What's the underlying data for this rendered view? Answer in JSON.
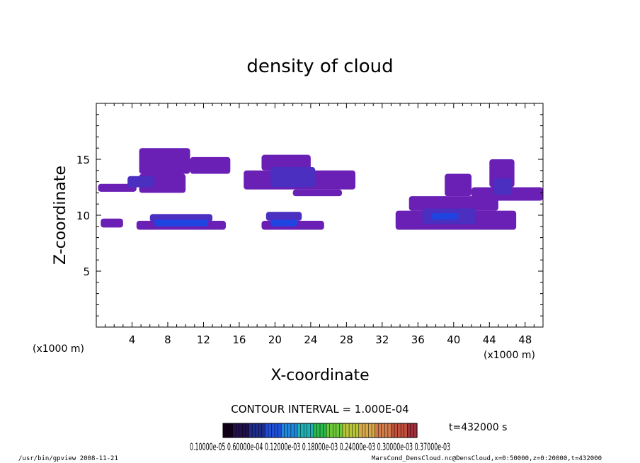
{
  "chart_data": {
    "type": "heatmap",
    "title": "density of cloud",
    "xlabel": "X-coordinate",
    "ylabel": "Z-coordinate",
    "x_unit_left": "(x1000 m)",
    "x_unit_right": "(x1000 m)",
    "xlim": [
      0,
      50
    ],
    "ylim": [
      0,
      20
    ],
    "xticks": [
      "4",
      "8",
      "12",
      "16",
      "20",
      "24",
      "28",
      "32",
      "36",
      "40",
      "44",
      "48"
    ],
    "yticks": [
      "5",
      "10",
      "15"
    ],
    "contour_interval": "CONTOUR INTERVAL = 1.000E-04",
    "time_label": "t=432000 s",
    "colorbar_labels": "0.10000e-05 0.60000e-04 0.12000e-03 0.18000e-03 0.24000e-03 0.30000e-03 0.37000e-03",
    "colorbar_colors": [
      "#120018",
      "#22104c",
      "#1e2c8c",
      "#1d4fd6",
      "#1f86dc",
      "#1fb0b4",
      "#2ab84a",
      "#6ec83a",
      "#b7c33a",
      "#d8a94a",
      "#d27b4a",
      "#c0503e",
      "#a1303a"
    ],
    "color_levels": [
      {
        "level": "low",
        "color": "#6a1fb5"
      },
      {
        "level": "medium",
        "color": "#4a2fc0"
      },
      {
        "level": "high",
        "color": "#1f44e0"
      }
    ],
    "regions": [
      {
        "level": "low",
        "x": [
          4.8,
          10.5
        ],
        "z": [
          13.7,
          16.0
        ]
      },
      {
        "level": "low",
        "x": [
          10.5,
          15.0
        ],
        "z": [
          13.7,
          15.2
        ]
      },
      {
        "level": "low",
        "x": [
          4.8,
          10.0
        ],
        "z": [
          12.0,
          13.7
        ]
      },
      {
        "level": "low",
        "x": [
          0.2,
          4.5
        ],
        "z": [
          12.1,
          12.8
        ]
      },
      {
        "level": "medium",
        "x": [
          3.5,
          6.5
        ],
        "z": [
          12.5,
          13.5
        ]
      },
      {
        "level": "low",
        "x": [
          0.5,
          3.0
        ],
        "z": [
          8.9,
          9.7
        ]
      },
      {
        "level": "low",
        "x": [
          4.5,
          14.5
        ],
        "z": [
          8.7,
          9.5
        ]
      },
      {
        "level": "medium",
        "x": [
          6.0,
          13.0
        ],
        "z": [
          9.4,
          10.1
        ]
      },
      {
        "level": "high",
        "x": [
          6.5,
          12.5
        ],
        "z": [
          9.0,
          9.6
        ]
      },
      {
        "level": "low",
        "x": [
          18.5,
          24.0
        ],
        "z": [
          14.0,
          15.4
        ]
      },
      {
        "level": "low",
        "x": [
          16.5,
          29.0
        ],
        "z": [
          12.3,
          14.0
        ]
      },
      {
        "level": "medium",
        "x": [
          19.5,
          24.5
        ],
        "z": [
          12.5,
          14.3
        ]
      },
      {
        "level": "low",
        "x": [
          22.0,
          27.5
        ],
        "z": [
          11.7,
          12.3
        ]
      },
      {
        "level": "low",
        "x": [
          18.5,
          25.5
        ],
        "z": [
          8.7,
          9.5
        ]
      },
      {
        "level": "medium",
        "x": [
          19.0,
          23.0
        ],
        "z": [
          9.5,
          10.3
        ]
      },
      {
        "level": "high",
        "x": [
          19.5,
          22.5
        ],
        "z": [
          9.0,
          9.6
        ]
      },
      {
        "level": "low",
        "x": [
          35.0,
          45.0
        ],
        "z": [
          10.4,
          11.7
        ]
      },
      {
        "level": "low",
        "x": [
          33.5,
          47.0
        ],
        "z": [
          8.7,
          10.4
        ]
      },
      {
        "level": "medium",
        "x": [
          36.5,
          42.5
        ],
        "z": [
          9.2,
          10.6
        ]
      },
      {
        "level": "high",
        "x": [
          37.5,
          40.5
        ],
        "z": [
          9.6,
          10.2
        ]
      },
      {
        "level": "low",
        "x": [
          39.0,
          42.0
        ],
        "z": [
          11.7,
          13.7
        ]
      },
      {
        "level": "low",
        "x": [
          42.0,
          50.0
        ],
        "z": [
          11.3,
          12.5
        ]
      },
      {
        "level": "low",
        "x": [
          44.0,
          46.8
        ],
        "z": [
          12.5,
          15.0
        ]
      },
      {
        "level": "medium",
        "x": [
          44.5,
          46.5
        ],
        "z": [
          11.8,
          13.3
        ]
      }
    ]
  },
  "footer": {
    "left": "/usr/bin/gpview  2008-11-21",
    "right": "MarsCond_DensCloud.nc@DensCloud,x=0:50000,z=0:20000,t=432000"
  }
}
